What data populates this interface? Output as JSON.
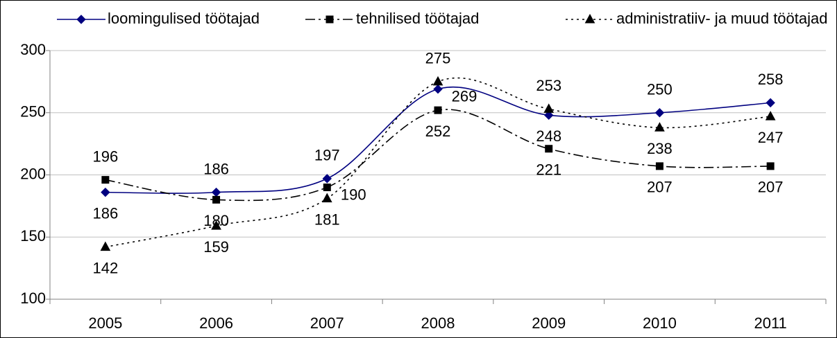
{
  "chart_data": {
    "type": "line",
    "categories": [
      "2005",
      "2006",
      "2007",
      "2008",
      "2009",
      "2010",
      "2011"
    ],
    "series": [
      {
        "name": "loomingulised töötajad",
        "color": "#000080",
        "values": [
          186,
          186,
          197,
          269,
          248,
          250,
          258
        ]
      },
      {
        "name": "tehnilised töötajad",
        "color": "#000000",
        "values": [
          196,
          180,
          190,
          252,
          221,
          207,
          207
        ]
      },
      {
        "name": "administratiiv- ja muud töötajad",
        "color": "#000000",
        "values": [
          142,
          159,
          181,
          275,
          253,
          238,
          247
        ]
      }
    ],
    "ylim": [
      100,
      300
    ],
    "yticks": [
      100,
      150,
      200,
      250,
      300
    ],
    "grid": true,
    "legend": "top",
    "smooth": true
  }
}
